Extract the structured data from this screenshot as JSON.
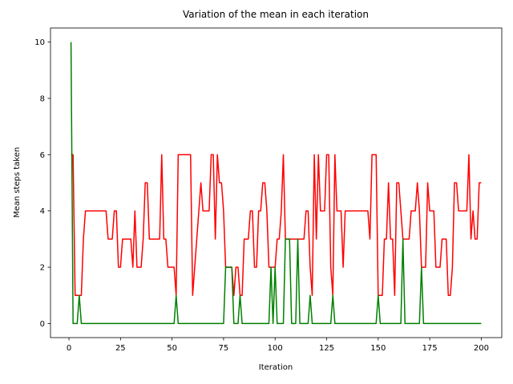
{
  "chart_data": {
    "type": "line",
    "title": "Variation of the mean in each iteration",
    "x_label": "Iteration",
    "y_label": "Mean steps taken",
    "x": [
      1,
      2,
      3,
      4,
      5,
      6,
      7,
      8,
      9,
      10,
      11,
      12,
      13,
      14,
      15,
      16,
      17,
      18,
      19,
      20,
      21,
      22,
      23,
      24,
      25,
      26,
      27,
      28,
      29,
      30,
      31,
      32,
      33,
      34,
      35,
      36,
      37,
      38,
      39,
      40,
      41,
      42,
      43,
      44,
      45,
      46,
      47,
      48,
      49,
      50,
      51,
      52,
      53,
      54,
      55,
      56,
      57,
      58,
      59,
      60,
      61,
      62,
      63,
      64,
      65,
      66,
      67,
      68,
      69,
      70,
      71,
      72,
      73,
      74,
      75,
      76,
      77,
      78,
      79,
      80,
      81,
      82,
      83,
      84,
      85,
      86,
      87,
      88,
      89,
      90,
      91,
      92,
      93,
      94,
      95,
      96,
      97,
      98,
      99,
      100,
      101,
      102,
      103,
      104,
      105,
      106,
      107,
      108,
      109,
      110,
      111,
      112,
      113,
      114,
      115,
      116,
      117,
      118,
      119,
      120,
      121,
      122,
      123,
      124,
      125,
      126,
      127,
      128,
      129,
      130,
      131,
      132,
      133,
      134,
      135,
      136,
      137,
      138,
      139,
      140,
      141,
      142,
      143,
      144,
      145,
      146,
      147,
      148,
      149,
      150,
      151,
      152,
      153,
      154,
      155,
      156,
      157,
      158,
      159,
      160,
      161,
      162,
      163,
      164,
      165,
      166,
      167,
      168,
      169,
      170,
      171,
      172,
      173,
      174,
      175,
      176,
      177,
      178,
      179,
      180,
      181,
      182,
      183,
      184,
      185,
      186,
      187,
      188,
      189,
      190,
      191,
      192,
      193,
      194,
      195,
      196,
      197,
      198,
      199,
      200
    ],
    "series": [
      {
        "color": "#ff0000",
        "values": [
          6,
          6,
          1,
          1,
          1,
          1,
          3,
          4,
          4,
          4,
          4,
          4,
          4,
          4,
          4,
          4,
          4,
          4,
          3,
          3,
          3,
          4,
          4,
          2,
          2,
          3,
          3,
          3,
          3,
          3,
          2,
          4,
          2,
          2,
          2,
          3,
          5,
          5,
          3,
          3,
          3,
          3,
          3,
          3,
          6,
          3,
          3,
          2,
          2,
          2,
          2,
          1,
          6,
          6,
          6,
          6,
          6,
          6,
          6,
          1,
          2,
          3,
          4,
          5,
          4,
          4,
          4,
          4,
          6,
          6,
          3,
          6,
          5,
          5,
          4,
          2,
          2,
          2,
          2,
          1,
          2,
          2,
          1,
          1,
          3,
          3,
          3,
          4,
          4,
          2,
          2,
          4,
          4,
          5,
          5,
          4,
          2,
          2,
          2,
          2,
          3,
          3,
          4,
          6,
          3,
          3,
          3,
          3,
          3,
          3,
          3,
          3,
          3,
          3,
          4,
          4,
          2,
          1,
          6,
          3,
          6,
          4,
          4,
          4,
          6,
          6,
          2,
          1,
          6,
          4,
          4,
          4,
          2,
          4,
          4,
          4,
          4,
          4,
          4,
          4,
          4,
          4,
          4,
          4,
          4,
          3,
          6,
          6,
          6,
          1,
          1,
          1,
          3,
          3,
          5,
          3,
          3,
          1,
          5,
          5,
          4,
          3,
          3,
          3,
          3,
          4,
          4,
          4,
          5,
          4,
          2,
          2,
          2,
          5,
          4,
          4,
          4,
          2,
          2,
          2,
          3,
          3,
          3,
          1,
          1,
          2,
          5,
          5,
          4,
          4,
          4,
          4,
          4,
          6,
          3,
          4,
          3,
          3,
          5,
          5
        ]
      },
      {
        "color": "#008000",
        "values": [
          10,
          0,
          0,
          0,
          1,
          0,
          0,
          0,
          0,
          0,
          0,
          0,
          0,
          0,
          0,
          0,
          0,
          0,
          0,
          0,
          0,
          0,
          0,
          0,
          0,
          0,
          0,
          0,
          0,
          0,
          0,
          0,
          0,
          0,
          0,
          0,
          0,
          0,
          0,
          0,
          0,
          0,
          0,
          0,
          0,
          0,
          0,
          0,
          0,
          0,
          0,
          1,
          0,
          0,
          0,
          0,
          0,
          0,
          0,
          0,
          0,
          0,
          0,
          0,
          0,
          0,
          0,
          0,
          0,
          0,
          0,
          0,
          0,
          0,
          0,
          2,
          2,
          2,
          2,
          0,
          0,
          0,
          1,
          0,
          0,
          0,
          0,
          0,
          0,
          0,
          0,
          0,
          0,
          0,
          0,
          0,
          0,
          2,
          0,
          2,
          0,
          0,
          0,
          0,
          3,
          3,
          3,
          0,
          0,
          0,
          3,
          0,
          0,
          0,
          0,
          0,
          1,
          0,
          0,
          0,
          0,
          0,
          0,
          0,
          0,
          0,
          0,
          1,
          0,
          0,
          0,
          0,
          0,
          0,
          0,
          0,
          0,
          0,
          0,
          0,
          0,
          0,
          0,
          0,
          0,
          0,
          0,
          0,
          0,
          1,
          0,
          0,
          0,
          0,
          0,
          0,
          0,
          0,
          0,
          0,
          0,
          3,
          0,
          0,
          0,
          0,
          0,
          0,
          0,
          0,
          2,
          0,
          0,
          0,
          0,
          0,
          0,
          0,
          0,
          0,
          0,
          0,
          0,
          0,
          0,
          0,
          0,
          0,
          0,
          0,
          0,
          0,
          0,
          0,
          0,
          0,
          0,
          0,
          0,
          0
        ]
      }
    ],
    "xlim": [
      -8.95,
      209.95
    ],
    "xticks": [
      0,
      25,
      50,
      75,
      100,
      125,
      150,
      175,
      200
    ],
    "ylim": [
      -0.5,
      10.5
    ],
    "yticks": [
      0,
      2,
      4,
      6,
      8,
      10
    ],
    "grid": false
  }
}
